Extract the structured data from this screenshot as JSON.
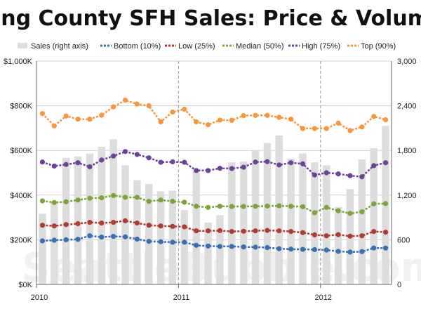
{
  "chart_data": {
    "type": "line",
    "title": "King County SFH Sales: Price & Volume",
    "watermark": "SeattleBubble.com",
    "x_start": "2010-01",
    "x_end": "2012-06",
    "x_tick_labels": [
      "2010",
      "2011",
      "2012"
    ],
    "y_left": {
      "ticks": [
        "$0K",
        "$200K",
        "$400K",
        "$600K",
        "$800K",
        "$1,000K"
      ],
      "ylim": [
        0,
        1000000
      ]
    },
    "y_right": {
      "ticks": [
        "0",
        "600",
        "1,200",
        "1,800",
        "2,400",
        "3,000"
      ],
      "ylim": [
        0,
        3000
      ]
    },
    "bar_series": {
      "name": "Sales (right axis)",
      "color": "#dddddd",
      "values": [
        950,
        1100,
        1700,
        1720,
        1760,
        1850,
        1950,
        1600,
        1400,
        1350,
        1250,
        1260,
        1000,
        1520,
        830,
        930,
        1640,
        1650,
        1800,
        1900,
        2000,
        1690,
        1760,
        1640,
        1600,
        1040,
        1280,
        1680,
        1830,
        2130
      ]
    },
    "series": [
      {
        "name": "Bottom (10%)",
        "color": "#3a6fb0",
        "values": [
          195000,
          198000,
          200000,
          202000,
          218000,
          212000,
          215000,
          213000,
          203000,
          193000,
          191000,
          189000,
          189000,
          175000,
          172000,
          170000,
          170000,
          168000,
          167000,
          165000,
          160000,
          158000,
          157000,
          156000,
          154000,
          148000,
          145000,
          147000,
          163000,
          163000
        ]
      },
      {
        "name": "Low (25%)",
        "color": "#b03a36",
        "values": [
          265000,
          262000,
          268000,
          272000,
          278000,
          275000,
          278000,
          285000,
          275000,
          265000,
          262000,
          260000,
          258000,
          240000,
          240000,
          241000,
          237000,
          238000,
          240000,
          242000,
          240000,
          237000,
          232000,
          222000,
          218000,
          223000,
          216000,
          218000,
          237000,
          234000
        ]
      },
      {
        "name": "Median (50%)",
        "color": "#7fa23a",
        "values": [
          374000,
          367000,
          370000,
          378000,
          386000,
          388000,
          398000,
          390000,
          390000,
          372000,
          378000,
          372000,
          368000,
          350000,
          345000,
          350000,
          349000,
          349000,
          350000,
          351000,
          352000,
          350000,
          348000,
          321000,
          345000,
          330000,
          318000,
          325000,
          361000,
          362000
        ]
      },
      {
        "name": "High (75%)",
        "color": "#6a4597",
        "values": [
          548000,
          530000,
          537000,
          545000,
          527000,
          557000,
          575000,
          595000,
          582000,
          567000,
          547000,
          549000,
          547000,
          510000,
          510000,
          520000,
          519000,
          525000,
          548000,
          550000,
          535000,
          545000,
          540000,
          490000,
          500000,
          495000,
          487000,
          482000,
          532000,
          545000
        ]
      },
      {
        "name": "Top (90%)",
        "color": "#f7963c",
        "values": [
          765000,
          710000,
          754000,
          740000,
          740000,
          758000,
          795000,
          825000,
          808000,
          800000,
          728000,
          772000,
          785000,
          728000,
          715000,
          736000,
          735000,
          756000,
          757000,
          757000,
          748000,
          740000,
          698000,
          698000,
          698000,
          722000,
          689000,
          705000,
          752000,
          737000
        ]
      }
    ]
  }
}
